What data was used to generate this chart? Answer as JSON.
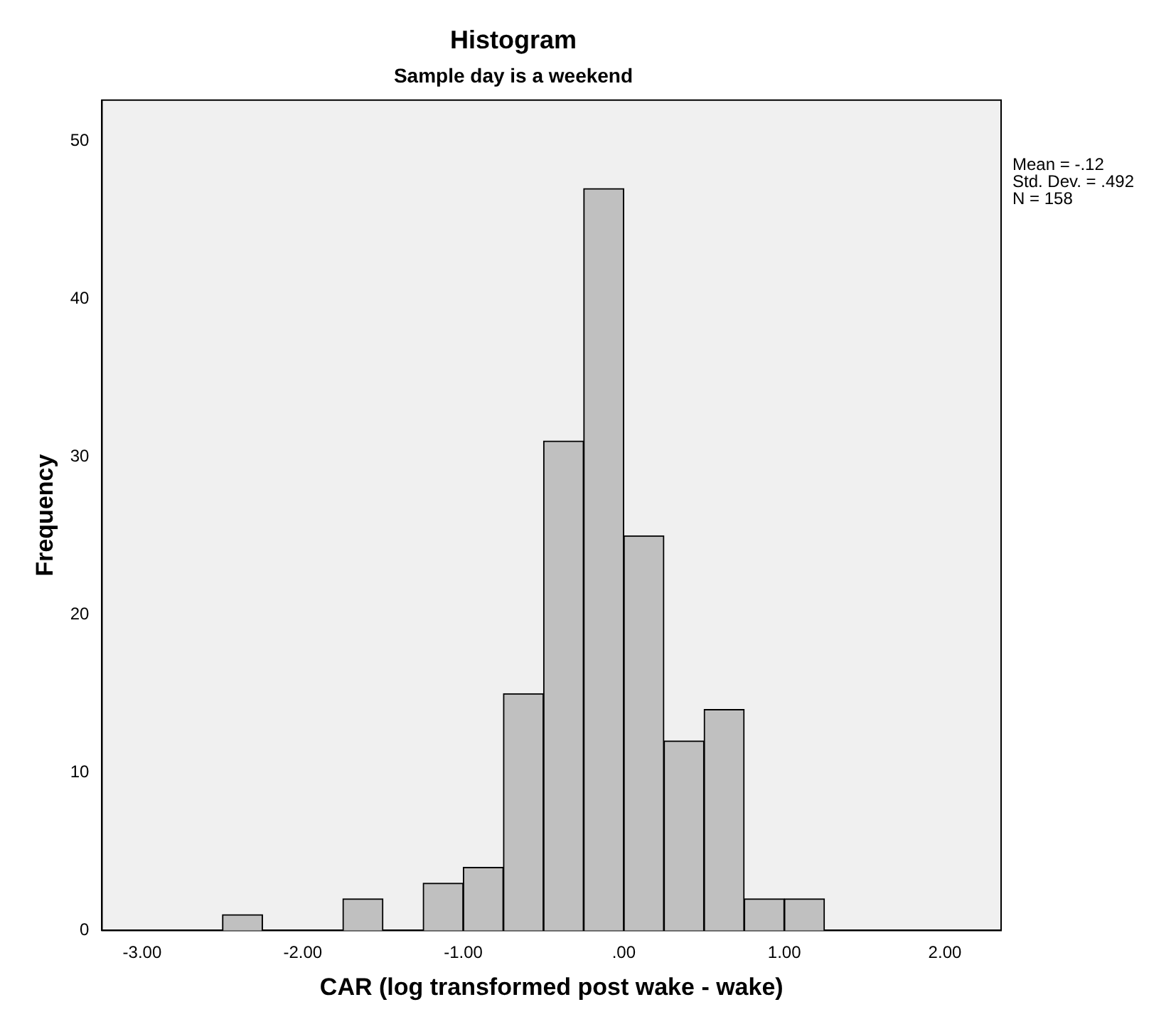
{
  "chart_data": {
    "type": "histogram",
    "title": "Histogram",
    "subtitle": "Sample day is a weekend",
    "xlabel": "CAR (log transformed post wake - wake)",
    "ylabel": "Frequency",
    "bins": [
      -2.5,
      -2.25,
      -2,
      -1.75,
      -1.5,
      -1.25,
      -1,
      -0.75,
      -0.5,
      -0.25,
      0,
      0.25,
      0.5,
      0.75,
      1,
      1.25
    ],
    "values": [
      1,
      0,
      0,
      2,
      0,
      3,
      4,
      15,
      31,
      47,
      25,
      12,
      14,
      2,
      2
    ],
    "color": "#c0c0c0",
    "xlim": [
      -3.25,
      2.35
    ],
    "xticks": [
      {
        "value": -3,
        "label": "-3.00"
      },
      {
        "value": -2,
        "label": "-2.00"
      },
      {
        "value": -1,
        "label": "-1.00"
      },
      {
        "value": 0,
        "label": ".00"
      },
      {
        "value": 1,
        "label": "1.00"
      },
      {
        "value": 2,
        "label": "2.00"
      }
    ],
    "ylim": [
      0,
      52.6
    ],
    "yticks": [
      0,
      10,
      20,
      30,
      40,
      50
    ],
    "grid": false,
    "legend": false,
    "annotations": [
      "Mean = -.12",
      "Std. Dev. = .492",
      "N = 158"
    ]
  }
}
